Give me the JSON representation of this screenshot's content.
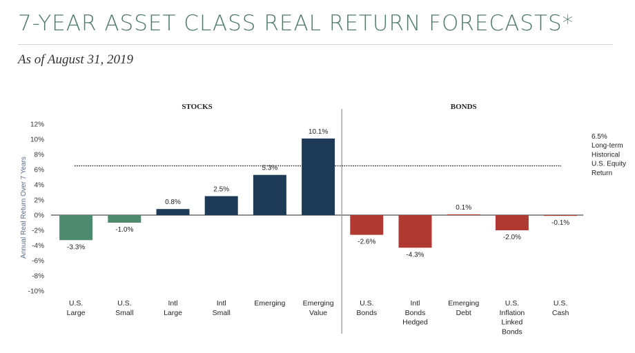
{
  "page": {
    "title": "7-YEAR ASSET CLASS REAL RETURN FORECASTS*",
    "subtitle": "As of August 31, 2019"
  },
  "colors": {
    "stocks": "#1d3a57",
    "us_stocks": "#4d8a6e",
    "bonds": "#b03a32",
    "title": "#4f7a66",
    "axis_text": "#333333",
    "reference_line": "#222222"
  },
  "chart_data": {
    "type": "bar",
    "title": "",
    "xlabel": "",
    "ylabel": "Annual Real Return Over 7 Years",
    "ylim": [
      -10,
      12
    ],
    "yticks": [
      12,
      10,
      8,
      6,
      4,
      2,
      0,
      -2,
      -4,
      -6,
      -8,
      -10
    ],
    "ytick_labels": [
      "12%",
      "10%",
      "8%",
      "6%",
      "4%",
      "2%",
      "0%",
      "-2%",
      "-4%",
      "-6%",
      "-8%",
      "-10%"
    ],
    "groups": [
      {
        "name": "STOCKS",
        "span": [
          0,
          5
        ]
      },
      {
        "name": "BONDS",
        "span": [
          6,
          10
        ]
      }
    ],
    "categories": [
      [
        "U.S.",
        "Large"
      ],
      [
        "U.S.",
        "Small"
      ],
      [
        "Intl",
        "Large"
      ],
      [
        "Intl",
        "Small"
      ],
      [
        "Emerging"
      ],
      [
        "Emerging",
        "Value"
      ],
      [
        "U.S.",
        "Bonds"
      ],
      [
        "Intl",
        "Bonds",
        "Hedged"
      ],
      [
        "Emerging",
        "Debt"
      ],
      [
        "U.S.",
        "Inflation",
        "Linked",
        "Bonds"
      ],
      [
        "U.S.",
        "Cash"
      ]
    ],
    "values": [
      -3.3,
      -1.0,
      0.8,
      2.5,
      5.3,
      10.1,
      -2.6,
      -4.3,
      0.1,
      -2.0,
      -0.1
    ],
    "value_labels": [
      "-3.3%",
      "-1.0%",
      "0.8%",
      "2.5%",
      "5.3%",
      "10.1%",
      "-2.6%",
      "-4.3%",
      "0.1%",
      "-2.0%",
      "-0.1%"
    ],
    "bar_colors": [
      "us_stocks",
      "us_stocks",
      "stocks",
      "stocks",
      "stocks",
      "stocks",
      "bonds",
      "bonds",
      "bonds",
      "bonds",
      "bonds"
    ],
    "reference_line": {
      "value": 6.5,
      "label_lines": [
        "6.5%",
        "Long-term",
        "Historical",
        "U.S. Equity",
        "Return"
      ]
    }
  }
}
